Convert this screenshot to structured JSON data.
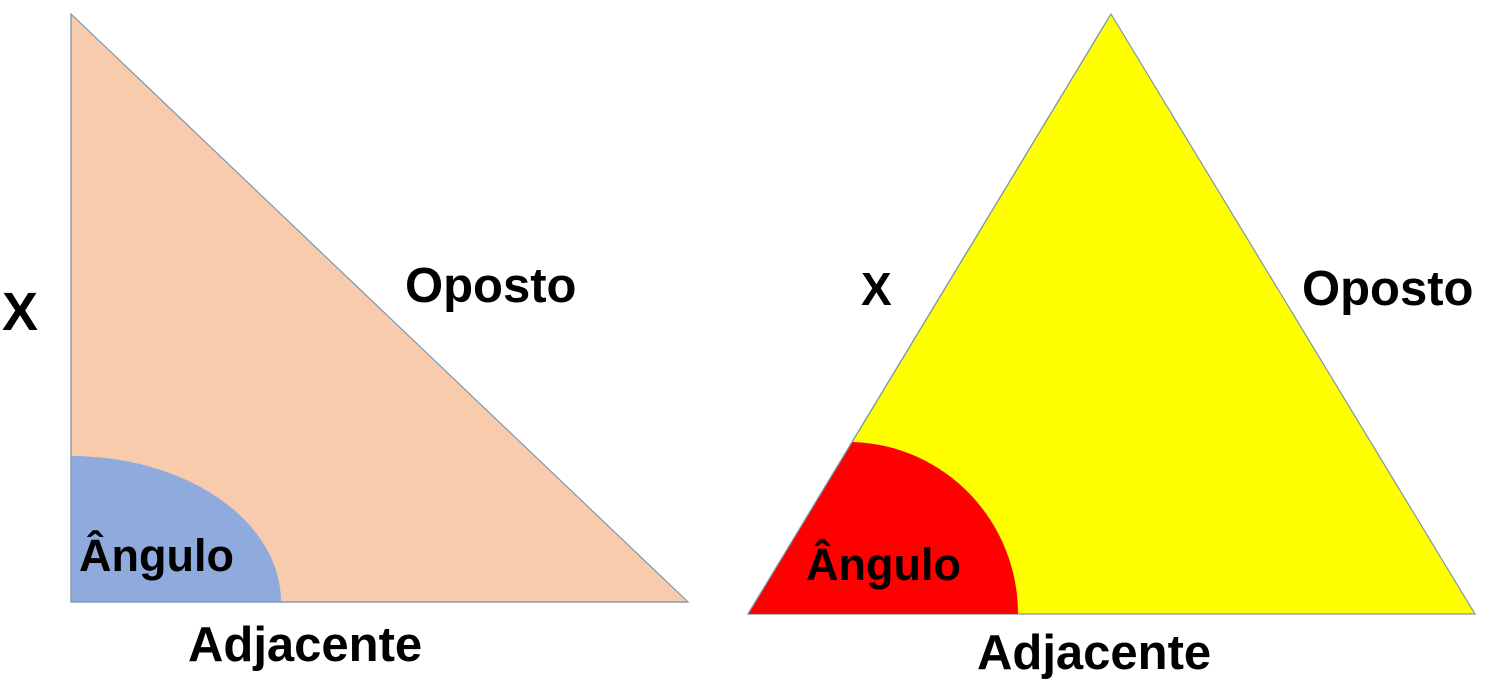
{
  "colors": {
    "background": "#ffffff",
    "right_triangle_fill": "#f8cbad",
    "right_triangle_stroke": "#7f96ad",
    "right_angle_sector": "#8faadc",
    "equilateral_fill": "#ffff00",
    "equilateral_stroke": "#7f96ad",
    "equilateral_angle_sector": "#ff0000",
    "text": "#000000"
  },
  "left_figure": {
    "side_label": "X",
    "hypotenuse_label": "Oposto",
    "base_label": "Adjacente",
    "angle_label": "Ângulo"
  },
  "right_figure": {
    "side_label": "X",
    "right_side_label": "Oposto",
    "base_label": "Adjacente",
    "angle_label": "Ângulo"
  }
}
